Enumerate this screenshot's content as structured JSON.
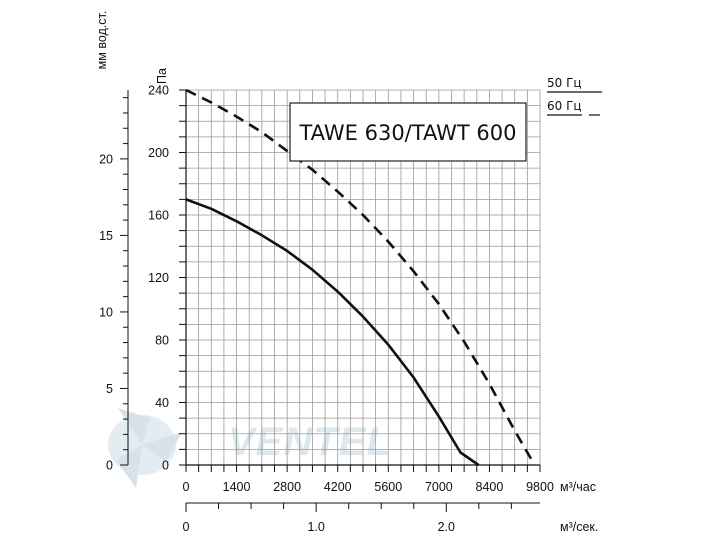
{
  "chart_data": {
    "type": "line",
    "title": "TAWE 630/TAWT 600",
    "x_unit": "м³/час",
    "x2_unit": "м³/сек.",
    "y_unit": "Па",
    "y2_unit": "мм вод.ст.",
    "xlim": [
      0,
      9800
    ],
    "ylim": [
      0,
      240
    ],
    "x_ticks": [
      "0",
      "1400",
      "2800",
      "4200",
      "5600",
      "7000",
      "8400",
      "9800"
    ],
    "x_tick_values": [
      0,
      1400,
      2800,
      4200,
      5600,
      7000,
      8400,
      9800
    ],
    "y_ticks": [
      "0",
      "40",
      "80",
      "120",
      "160",
      "200",
      "240"
    ],
    "y_tick_values": [
      0,
      40,
      80,
      120,
      160,
      200,
      240
    ],
    "y2_ticks": [
      "0",
      "5",
      "10",
      "15",
      "20"
    ],
    "y2_tick_values": [
      0,
      5,
      10,
      15,
      20
    ],
    "y2_max": 24.5,
    "x2_ticks": [
      "0",
      "1.0",
      "2.0"
    ],
    "x2_tick_values": [
      0,
      1.0,
      2.0
    ],
    "x2_max": 2.72,
    "grid": true,
    "legend": [
      {
        "label": "50 Гц",
        "style": "solid"
      },
      {
        "label": "60 Гц",
        "style": "dashed"
      }
    ],
    "series": [
      {
        "style": "solid",
        "x": [
          0,
          700,
          1400,
          2100,
          2800,
          3500,
          4200,
          4900,
          5600,
          6300,
          7000,
          7600,
          8100
        ],
        "y": [
          170,
          164,
          156,
          147,
          137,
          125,
          111,
          95,
          77,
          56,
          31,
          8,
          0
        ]
      },
      {
        "style": "dashed",
        "x": [
          0,
          700,
          1400,
          2100,
          2800,
          3500,
          4200,
          4900,
          5600,
          6300,
          7000,
          7700,
          8400,
          9100,
          9650
        ],
        "y": [
          240,
          232,
          223,
          213,
          201,
          189,
          175,
          160,
          143,
          124,
          103,
          79,
          52,
          22,
          0
        ]
      }
    ]
  },
  "watermark": "VENTEL"
}
